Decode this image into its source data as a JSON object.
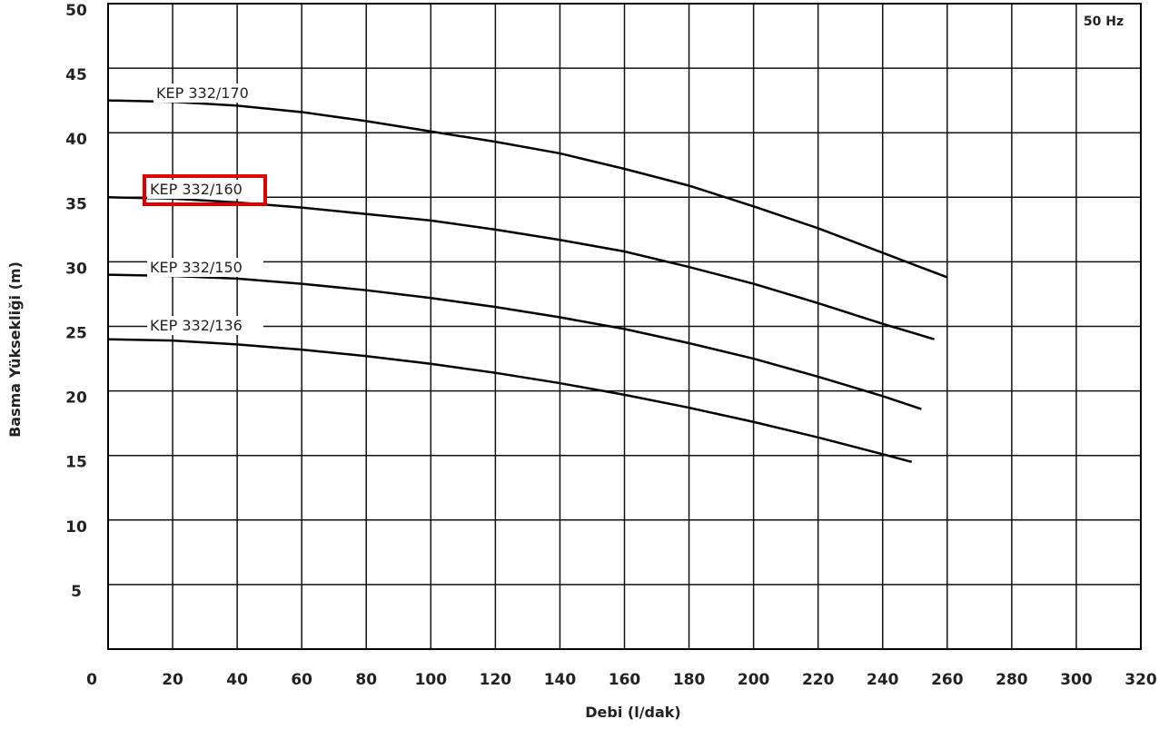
{
  "chart_data": {
    "type": "line",
    "y_label": "Basma Yüksekliği (m)",
    "x_label": "Debi (l/dak)",
    "annotation": "50 Hz",
    "xlim": [
      0,
      320
    ],
    "xticks": [
      0,
      20,
      40,
      60,
      80,
      100,
      120,
      140,
      160,
      180,
      200,
      220,
      240,
      260,
      280,
      300,
      320
    ],
    "ylim": [
      0,
      50
    ],
    "yticks": [
      5,
      10,
      15,
      20,
      25,
      30,
      35,
      40,
      45,
      50
    ],
    "grid": true,
    "series": [
      {
        "name": "KEP 332/170",
        "color": "#000000",
        "x": [
          0,
          20,
          40,
          60,
          80,
          100,
          120,
          140,
          160,
          180,
          200,
          220,
          240,
          260
        ],
        "values": [
          42.5,
          42.4,
          42.1,
          41.6,
          40.9,
          40.1,
          39.3,
          38.4,
          37.2,
          35.9,
          34.3,
          32.6,
          30.7,
          28.8
        ]
      },
      {
        "name": "KEP 332/160",
        "color": "#000000",
        "x": [
          0,
          20,
          40,
          60,
          80,
          100,
          120,
          140,
          160,
          180,
          200,
          220,
          240,
          256
        ],
        "values": [
          35.0,
          34.9,
          34.6,
          34.2,
          33.7,
          33.2,
          32.5,
          31.7,
          30.8,
          29.6,
          28.3,
          26.8,
          25.2,
          24.0
        ]
      },
      {
        "name": "KEP 332/150",
        "color": "#000000",
        "x": [
          0,
          20,
          40,
          60,
          80,
          100,
          120,
          140,
          160,
          180,
          200,
          220,
          240,
          252
        ],
        "values": [
          29.0,
          28.9,
          28.7,
          28.3,
          27.8,
          27.2,
          26.5,
          25.7,
          24.8,
          23.7,
          22.5,
          21.1,
          19.6,
          18.6
        ]
      },
      {
        "name": "KEP 332/136",
        "color": "#000000",
        "x": [
          0,
          20,
          40,
          60,
          80,
          100,
          120,
          140,
          160,
          180,
          200,
          220,
          240,
          249
        ],
        "values": [
          24.0,
          23.9,
          23.6,
          23.2,
          22.7,
          22.1,
          21.4,
          20.6,
          19.7,
          18.7,
          17.6,
          16.4,
          15.1,
          14.5
        ]
      }
    ]
  }
}
